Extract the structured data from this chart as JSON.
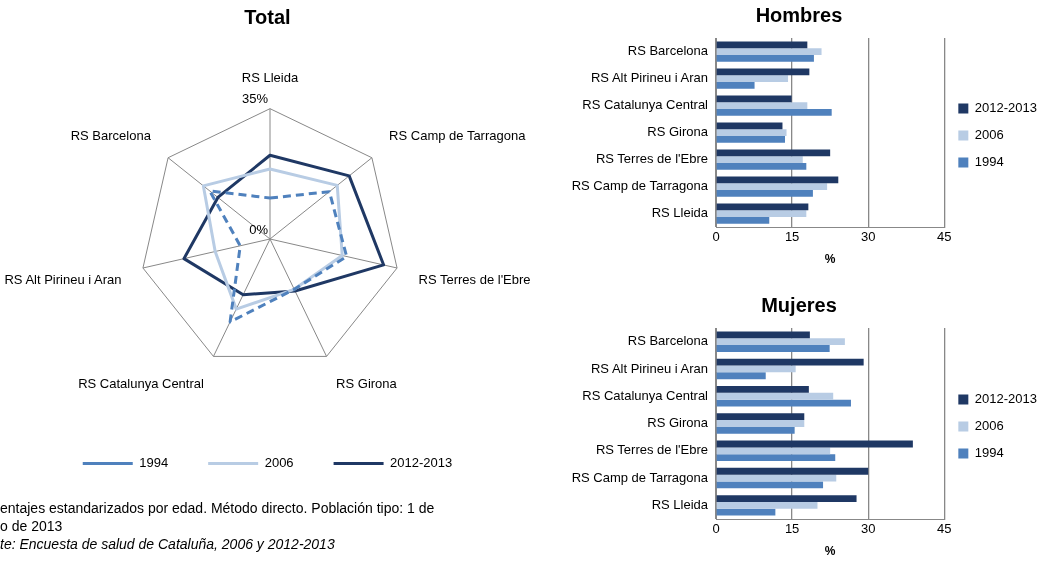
{
  "chart_data": [
    {
      "type": "radar",
      "title": "Total",
      "categories": [
        "RS Lleida",
        "RS Camp de Tarragona",
        "RS Terres de l'Ebre",
        "RS Girona",
        "RS Catalunya Central",
        "RS Alt Pirineu i Aran",
        "RS Barcelona"
      ],
      "series": [
        {
          "name": "1994",
          "color": "#4f81bd",
          "line_style": "dashed",
          "values": [
            11.0,
            20.4,
            21.1,
            15.0,
            24.7,
            8.2,
            20.7
          ]
        },
        {
          "name": "2006",
          "color": "#b8cce4",
          "values": [
            18.8,
            23.1,
            19.9,
            15.0,
            20.9,
            15.1,
            22.9
          ]
        },
        {
          "name": "2012-2013",
          "color": "#1f3864",
          "values": [
            22.5,
            27.2,
            31.3,
            15.5,
            16.6,
            23.7,
            17.9
          ]
        }
      ],
      "ylim": [
        0,
        35
      ],
      "yticks": [
        {
          "value": 0,
          "label": "0%"
        },
        {
          "value": 35,
          "label": "35%"
        }
      ],
      "marker": "none",
      "legend": "bottom",
      "annotations": [
        "entajes estandarizados por edad. Método directo. Población tipo: 1 de",
        "o de 2013",
        "te: Encuesta de salud de Cataluña, 2006 y 2012-2013"
      ]
    },
    {
      "type": "bar",
      "orientation": "horizontal",
      "title": "Hombres",
      "xlabel": "%",
      "categories": [
        "RS Barcelona",
        "RS Alt Pirineu i Aran",
        "RS Catalunya Central",
        "RS Girona",
        "RS Terres de l'Ebre",
        "RS Camp de Tarragona",
        "RS Lleida"
      ],
      "series": [
        {
          "name": "2012-2013",
          "color": "#1f3864",
          "values": [
            18.0,
            18.4,
            14.9,
            13.1,
            22.5,
            24.1,
            18.2
          ]
        },
        {
          "name": "2006",
          "color": "#b8cce4",
          "values": [
            20.8,
            14.2,
            18.0,
            13.9,
            17.1,
            21.9,
            17.8
          ]
        },
        {
          "name": "1994",
          "color": "#4f81bd",
          "values": [
            19.3,
            7.6,
            22.8,
            13.6,
            17.8,
            19.1,
            10.5
          ]
        }
      ],
      "xlim": [
        0,
        45
      ],
      "xticks": [
        0,
        15,
        30,
        45
      ],
      "grid": "x",
      "legend": "right"
    },
    {
      "type": "bar",
      "orientation": "horizontal",
      "title": "Mujeres",
      "xlabel": "%",
      "categories": [
        "RS Barcelona",
        "RS Alt Pirineu i Aran",
        "RS Catalunya Central",
        "RS Girona",
        "RS Terres de l'Ebre",
        "RS Camp de Tarragona",
        "RS Lleida"
      ],
      "series": [
        {
          "name": "2012-2013",
          "color": "#1f3864",
          "values": [
            18.5,
            29.1,
            18.3,
            17.4,
            38.8,
            30.0,
            27.7
          ]
        },
        {
          "name": "2006",
          "color": "#b8cce4",
          "values": [
            25.4,
            15.7,
            23.1,
            17.4,
            22.5,
            23.7,
            20.0
          ]
        },
        {
          "name": "1994",
          "color": "#4f81bd",
          "values": [
            22.4,
            9.8,
            26.6,
            15.5,
            23.5,
            21.1,
            11.7
          ]
        }
      ],
      "xlim": [
        0,
        45
      ],
      "xticks": [
        0,
        15,
        30,
        45
      ],
      "grid": "x",
      "legend": "right"
    }
  ]
}
